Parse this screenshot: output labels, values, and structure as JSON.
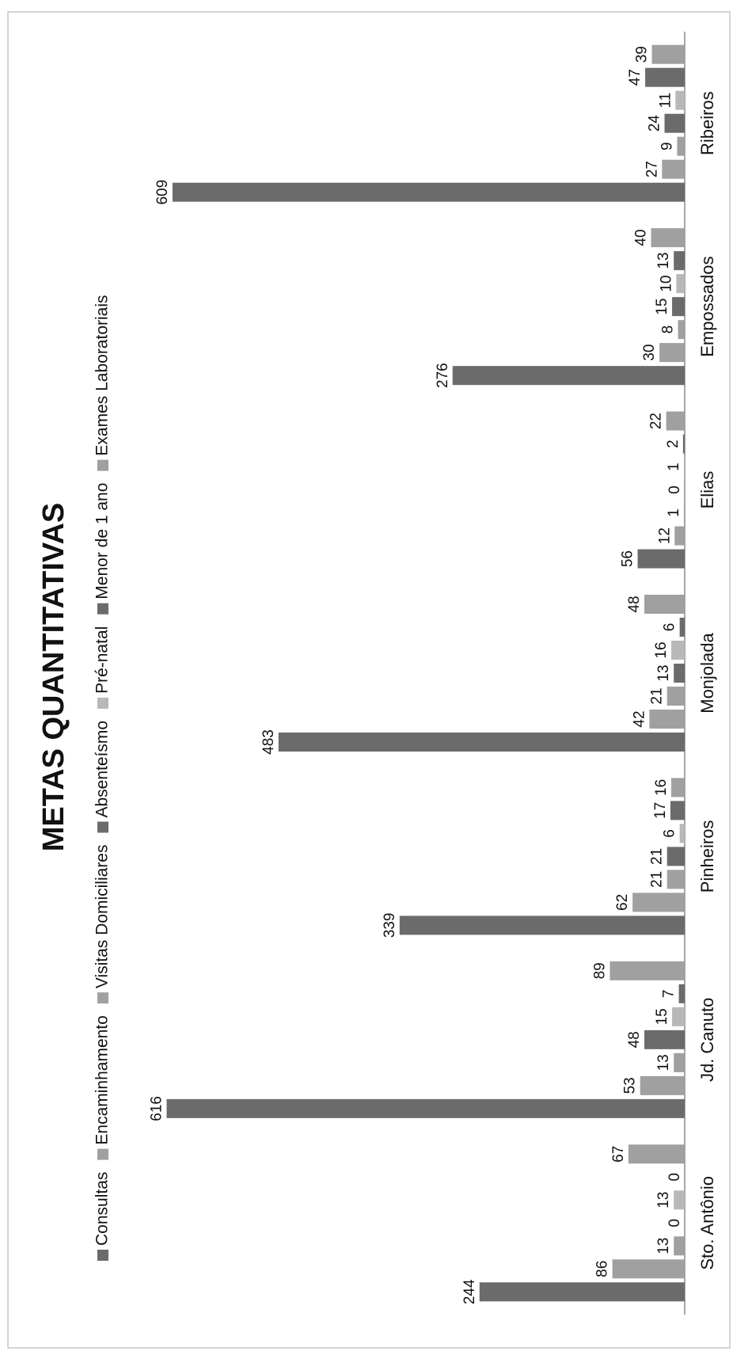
{
  "chart_data": {
    "type": "bar",
    "orientation": "rotated-90-clockwise",
    "title": "METAS QUANTITATIVAS",
    "categories": [
      "Sto. Antônio",
      "Jd. Canuto",
      "Pinheiros",
      "Monjolada",
      "Elias",
      "Empossados",
      "Ribeiros"
    ],
    "series": [
      {
        "name": "Consultas",
        "color": "#6b6b6b",
        "values": [
          244,
          616,
          339,
          483,
          56,
          276,
          609
        ]
      },
      {
        "name": "Encaminhamento",
        "color": "#a0a0a0",
        "values": [
          86,
          53,
          62,
          42,
          12,
          30,
          27
        ]
      },
      {
        "name": "Visitas Domiciliares",
        "color": "#a0a0a0",
        "values": [
          13,
          13,
          21,
          21,
          1,
          8,
          9
        ]
      },
      {
        "name": "Absenteísmo",
        "color": "#6b6b6b",
        "values": [
          0,
          48,
          21,
          13,
          0,
          15,
          24
        ]
      },
      {
        "name": "Pré-natal",
        "color": "#b8b8b8",
        "values": [
          13,
          15,
          6,
          16,
          1,
          10,
          11
        ]
      },
      {
        "name": "Menor de 1 ano",
        "color": "#6b6b6b",
        "values": [
          0,
          7,
          17,
          6,
          2,
          13,
          47
        ]
      },
      {
        "name": "Exames Laboratoriais",
        "color": "#a0a0a0",
        "values": [
          67,
          89,
          16,
          48,
          22,
          40,
          39
        ]
      }
    ],
    "ylim": [
      0,
      640
    ],
    "grid": false,
    "legend_position": "top"
  }
}
